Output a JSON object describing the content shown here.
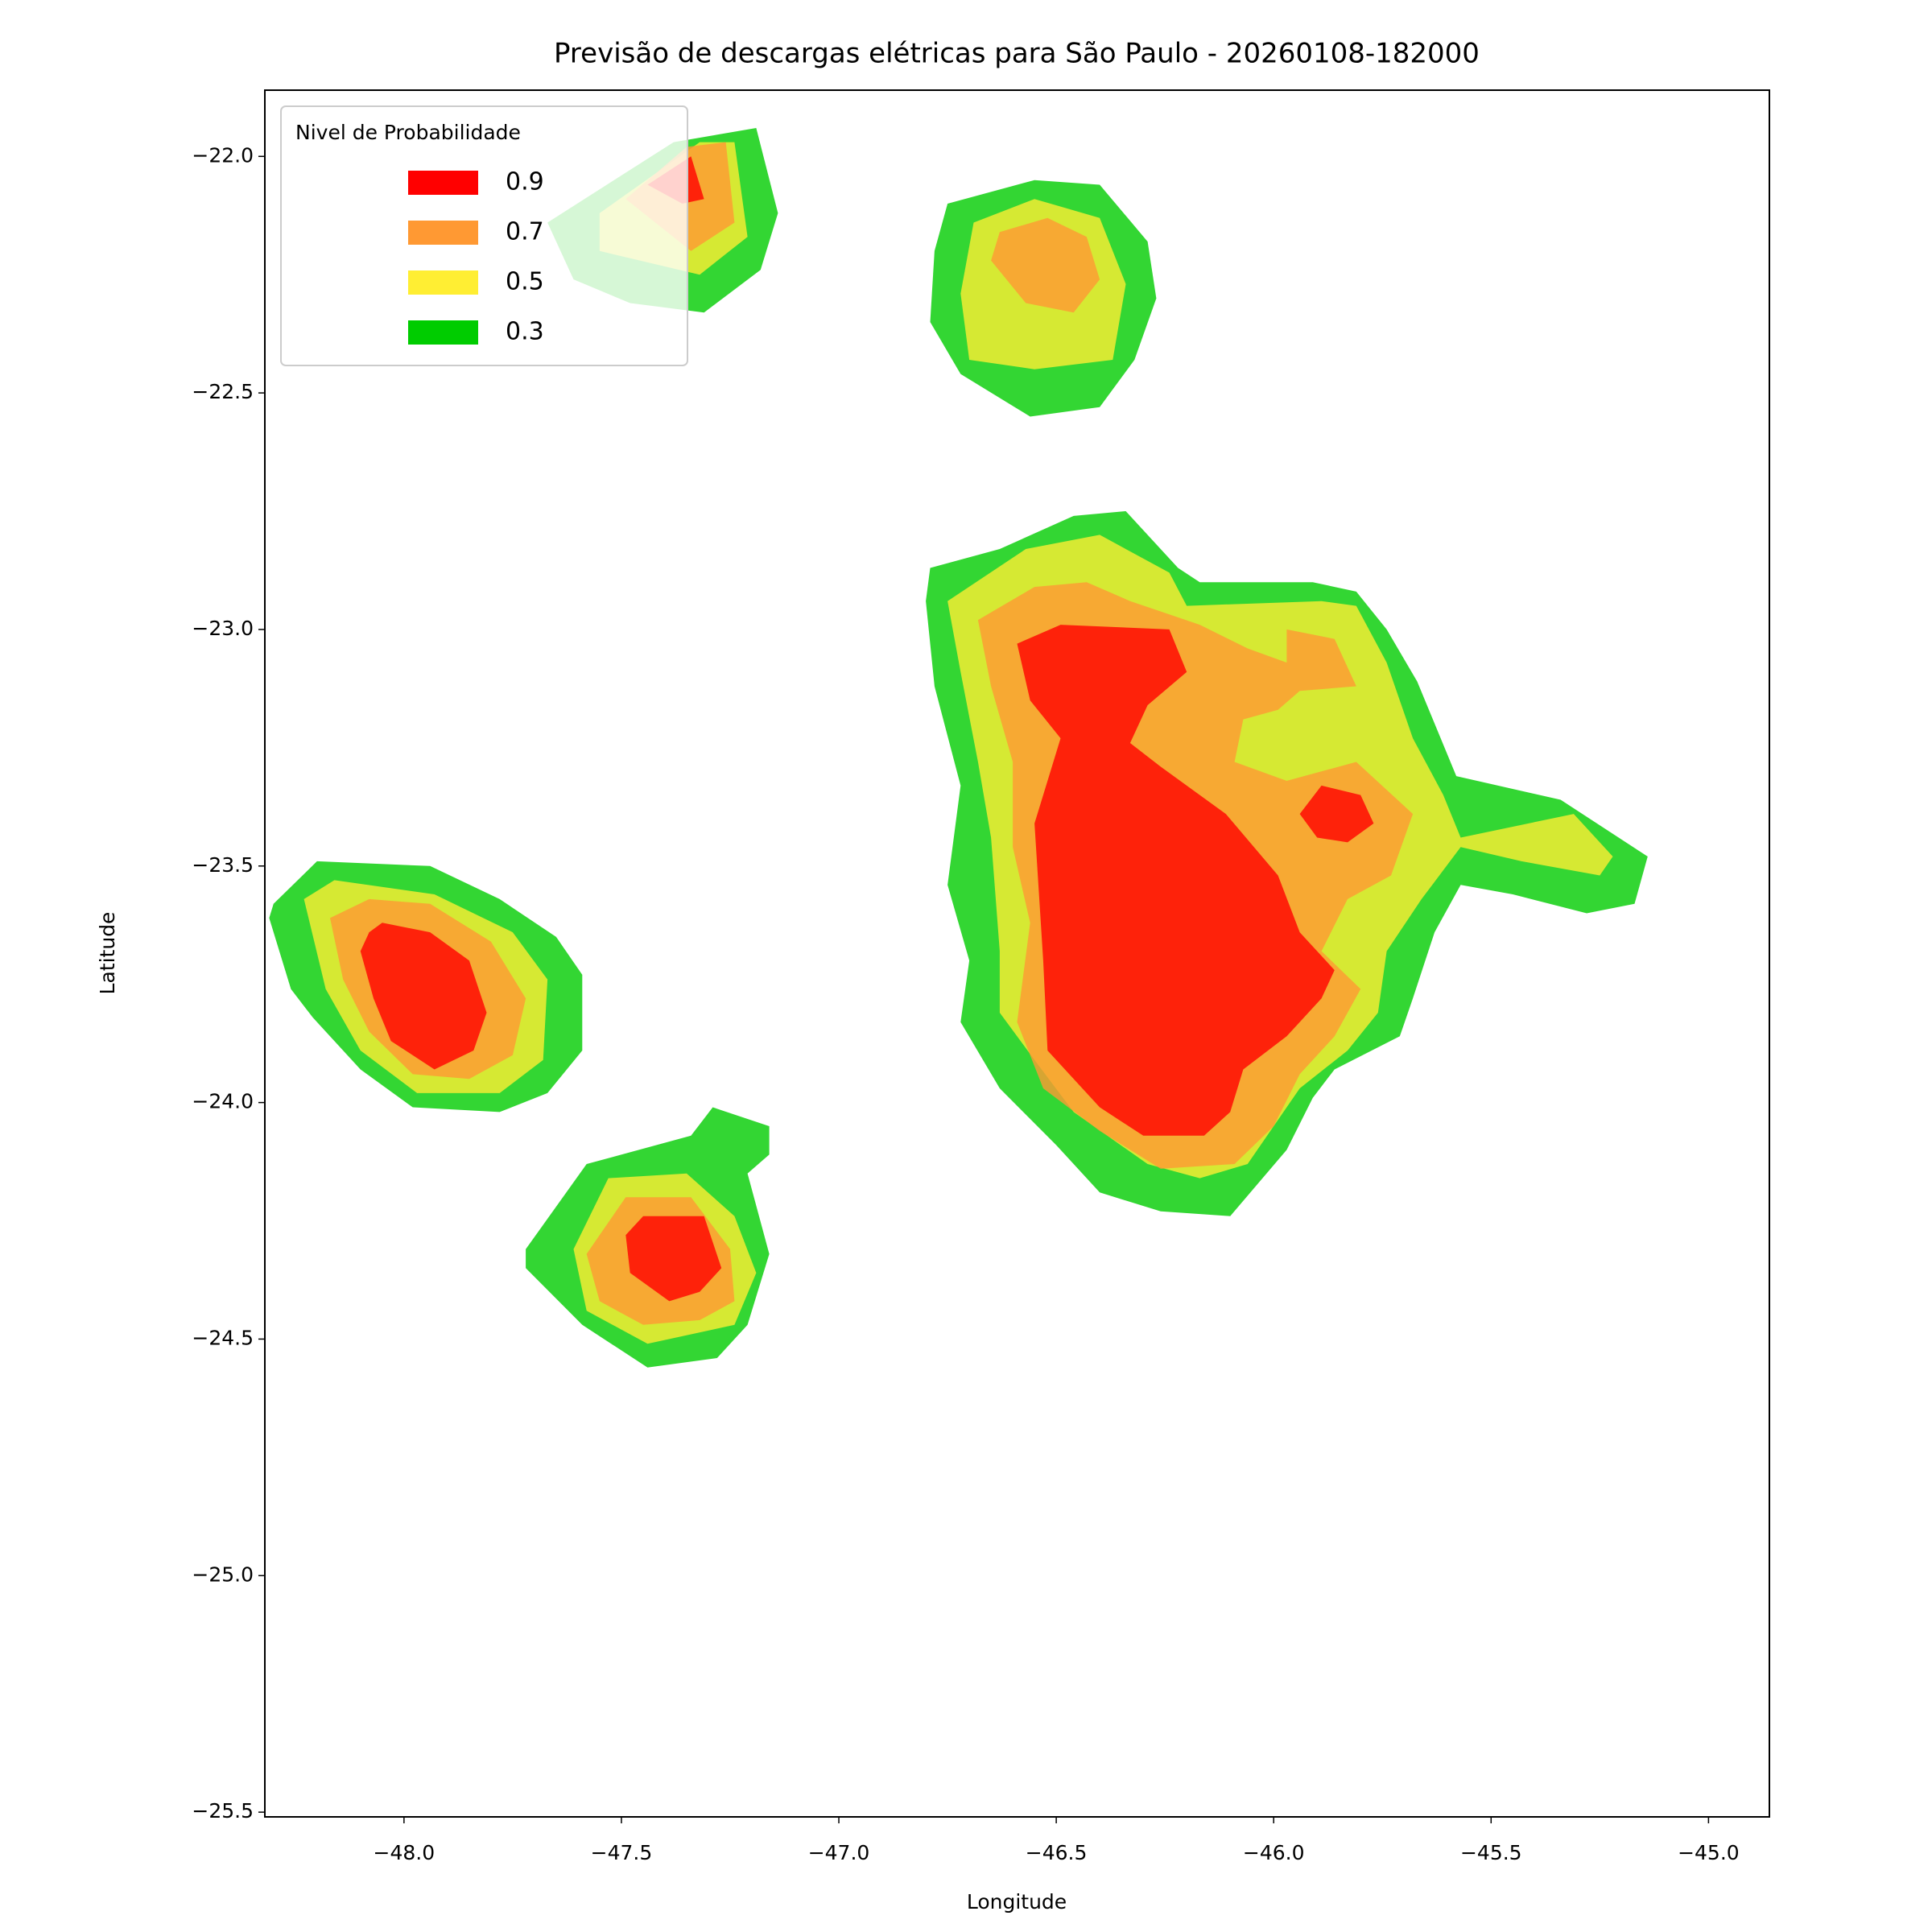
{
  "chart_data": {
    "type": "contourf",
    "title": "Previsão de descargas elétricas para São Paulo - 20260108-182000",
    "x_label": "Longitude",
    "y_label": "Latitude",
    "xlim": [
      -48.32,
      -44.86
    ],
    "ylim": [
      -25.51,
      -21.86
    ],
    "xticks": [
      {
        "value": -48.0,
        "label": "−48.0"
      },
      {
        "value": -47.5,
        "label": "−47.5"
      },
      {
        "value": -47.0,
        "label": "−47.0"
      },
      {
        "value": -46.5,
        "label": "−46.5"
      },
      {
        "value": -46.0,
        "label": "−46.0"
      },
      {
        "value": -45.5,
        "label": "−45.5"
      },
      {
        "value": -45.0,
        "label": "−45.0"
      }
    ],
    "yticks": [
      {
        "value": -22.0,
        "label": "−22.0"
      },
      {
        "value": -22.5,
        "label": "−22.5"
      },
      {
        "value": -23.0,
        "label": "−23.0"
      },
      {
        "value": -23.5,
        "label": "−23.5"
      },
      {
        "value": -24.0,
        "label": "−24.0"
      },
      {
        "value": -24.5,
        "label": "−24.5"
      },
      {
        "value": -25.0,
        "label": "−25.0"
      },
      {
        "value": -25.5,
        "label": "−25.5"
      }
    ],
    "alpha": 0.8,
    "legend": {
      "title": "Nivel de Probabilidade",
      "loc": "upper left"
    },
    "series": [
      {
        "name": "0.9",
        "color": "#ff0000",
        "regions": [
          {
            "lon": [
              -47.44,
              -47.34,
              -47.31,
              -47.36
            ],
            "lat": [
              -22.06,
              -22.0,
              -22.09,
              -22.1
            ]
          },
          {
            "lon": [
              -46.59,
              -46.49,
              -46.24,
              -46.2,
              -46.29,
              -46.33,
              -46.26,
              -46.11,
              -45.99,
              -45.94,
              -45.86,
              -45.89,
              -45.97,
              -46.07,
              -46.1,
              -46.16,
              -46.3,
              -46.4,
              -46.52,
              -46.53,
              -46.55,
              -46.49,
              -46.56
            ],
            "lat": [
              -23.03,
              -22.99,
              -23.0,
              -23.09,
              -23.16,
              -23.24,
              -23.29,
              -23.39,
              -23.52,
              -23.64,
              -23.72,
              -23.78,
              -23.86,
              -23.93,
              -24.02,
              -24.07,
              -24.07,
              -24.01,
              -23.89,
              -23.7,
              -23.41,
              -23.23,
              -23.15
            ]
          },
          {
            "lon": [
              -45.94,
              -45.89,
              -45.8,
              -45.77,
              -45.83,
              -45.9
            ],
            "lat": [
              -23.39,
              -23.33,
              -23.35,
              -23.41,
              -23.45,
              -23.44
            ]
          },
          {
            "lon": [
              -48.08,
              -48.05,
              -47.94,
              -47.85,
              -47.81,
              -47.84,
              -47.93,
              -48.03,
              -48.07,
              -48.1
            ],
            "lat": [
              -23.64,
              -23.62,
              -23.64,
              -23.7,
              -23.81,
              -23.89,
              -23.93,
              -23.87,
              -23.78,
              -23.68
            ]
          },
          {
            "lon": [
              -47.49,
              -47.45,
              -47.31,
              -47.27,
              -47.32,
              -47.39,
              -47.48
            ],
            "lat": [
              -24.28,
              -24.24,
              -24.24,
              -24.35,
              -24.4,
              -24.42,
              -24.36
            ]
          }
        ]
      },
      {
        "name": "0.7",
        "color": "#ff9933",
        "regions": [
          {
            "lon": [
              -47.49,
              -47.35,
              -47.26,
              -47.24,
              -47.34
            ],
            "lat": [
              -22.09,
              -21.98,
              -21.97,
              -22.14,
              -22.2
            ]
          },
          {
            "lon": [
              -46.63,
              -46.52,
              -46.43,
              -46.4,
              -46.46,
              -46.57,
              -46.65
            ],
            "lat": [
              -22.16,
              -22.13,
              -22.17,
              -22.26,
              -22.33,
              -22.31,
              -22.22
            ]
          },
          {
            "lon": [
              -46.68,
              -46.55,
              -46.43,
              -46.33,
              -46.17,
              -46.06,
              -45.97,
              -45.97,
              -45.86,
              -45.81,
              -45.94,
              -45.99,
              -46.07,
              -46.09,
              -45.97,
              -45.81,
              -45.68,
              -45.73,
              -45.83,
              -45.89,
              -45.8,
              -45.86,
              -45.94,
              -46.0,
              -46.09,
              -46.26,
              -46.4,
              -46.53,
              -46.59,
              -46.56,
              -46.6,
              -46.6,
              -46.65
            ],
            "lat": [
              -22.98,
              -22.91,
              -22.9,
              -22.94,
              -22.99,
              -23.04,
              -23.07,
              -23.0,
              -23.02,
              -23.12,
              -23.13,
              -23.17,
              -23.19,
              -23.28,
              -23.32,
              -23.28,
              -23.39,
              -23.52,
              -23.57,
              -23.68,
              -23.76,
              -23.86,
              -23.94,
              -24.05,
              -24.13,
              -24.14,
              -24.06,
              -23.97,
              -23.83,
              -23.62,
              -23.46,
              -23.28,
              -23.12
            ]
          },
          {
            "lon": [
              -48.17,
              -48.08,
              -47.94,
              -47.8,
              -47.72,
              -47.75,
              -47.85,
              -47.98,
              -48.08,
              -48.14
            ],
            "lat": [
              -23.61,
              -23.57,
              -23.58,
              -23.66,
              -23.78,
              -23.9,
              -23.95,
              -23.94,
              -23.85,
              -23.74
            ]
          },
          {
            "lon": [
              -47.58,
              -47.49,
              -47.34,
              -47.25,
              -47.24,
              -47.32,
              -47.45,
              -47.55
            ],
            "lat": [
              -24.32,
              -24.2,
              -24.2,
              -24.31,
              -24.42,
              -24.46,
              -24.47,
              -24.42
            ]
          }
        ]
      },
      {
        "name": "0.5",
        "color": "#ffee33",
        "regions": [
          {
            "lon": [
              -47.55,
              -47.32,
              -47.24,
              -47.21,
              -47.32,
              -47.55
            ],
            "lat": [
              -22.12,
              -21.97,
              -21.97,
              -22.17,
              -22.25,
              -22.2
            ]
          },
          {
            "lon": [
              -46.69,
              -46.55,
              -46.4,
              -46.34,
              -46.37,
              -46.55,
              -46.7,
              -46.72
            ],
            "lat": [
              -22.14,
              -22.09,
              -22.13,
              -22.27,
              -22.43,
              -22.45,
              -22.43,
              -22.29
            ]
          },
          {
            "lon": [
              -46.75,
              -46.57,
              -46.4,
              -46.24,
              -46.2,
              -45.89,
              -45.81,
              -45.74,
              -45.68,
              -45.61,
              -45.57,
              -45.31,
              -45.22,
              -45.25,
              -45.43,
              -45.57,
              -45.66,
              -45.74,
              -45.76,
              -45.83,
              -45.94,
              -46.06,
              -46.17,
              -46.29,
              -46.46,
              -46.55,
              -46.63,
              -46.63,
              -46.65,
              -46.68,
              -46.72
            ],
            "lat": [
              -22.94,
              -22.83,
              -22.8,
              -22.88,
              -22.95,
              -22.94,
              -22.95,
              -23.07,
              -23.23,
              -23.35,
              -23.44,
              -23.39,
              -23.48,
              -23.52,
              -23.49,
              -23.46,
              -23.57,
              -23.68,
              -23.81,
              -23.89,
              -23.97,
              -24.13,
              -24.16,
              -24.13,
              -24.02,
              -23.91,
              -23.81,
              -23.68,
              -23.44,
              -23.28,
              -23.09
            ]
          },
          {
            "lon": [
              -48.23,
              -48.16,
              -47.93,
              -47.75,
              -47.67,
              -47.68,
              -47.78,
              -47.97,
              -48.1,
              -48.18
            ],
            "lat": [
              -23.57,
              -23.53,
              -23.56,
              -23.64,
              -23.74,
              -23.91,
              -23.98,
              -23.98,
              -23.89,
              -23.76
            ]
          },
          {
            "lon": [
              -47.61,
              -47.53,
              -47.35,
              -47.24,
              -47.19,
              -47.24,
              -47.44,
              -47.58
            ],
            "lat": [
              -24.31,
              -24.16,
              -24.15,
              -24.24,
              -24.36,
              -24.47,
              -24.51,
              -24.44
            ]
          }
        ]
      },
      {
        "name": "0.3",
        "color": "#00cc00",
        "regions": [
          {
            "lon": [
              -47.67,
              -47.38,
              -47.19,
              -47.14,
              -47.18,
              -47.31,
              -47.48,
              -47.61
            ],
            "lat": [
              -22.14,
              -21.97,
              -21.94,
              -22.12,
              -22.24,
              -22.33,
              -22.31,
              -22.26
            ]
          },
          {
            "lon": [
              -46.75,
              -46.55,
              -46.4,
              -46.29,
              -46.27,
              -46.32,
              -46.4,
              -46.56,
              -46.72,
              -46.79,
              -46.78
            ],
            "lat": [
              -22.1,
              -22.05,
              -22.06,
              -22.18,
              -22.3,
              -22.43,
              -22.53,
              -22.55,
              -22.46,
              -22.35,
              -22.2
            ]
          },
          {
            "lon": [
              -46.79,
              -46.63,
              -46.46,
              -46.34,
              -46.22,
              -46.17,
              -45.91,
              -45.81,
              -45.74,
              -45.67,
              -45.58,
              -45.34,
              -45.14,
              -45.17,
              -45.28,
              -45.45,
              -45.57,
              -45.63,
              -45.68,
              -45.71,
              -45.86,
              -45.91,
              -45.97,
              -46.1,
              -46.26,
              -46.4,
              -46.5,
              -46.63,
              -46.72,
              -46.7,
              -46.75,
              -46.72,
              -46.78,
              -46.8
            ],
            "lat": [
              -22.87,
              -22.83,
              -22.76,
              -22.75,
              -22.87,
              -22.9,
              -22.9,
              -22.92,
              -23.0,
              -23.11,
              -23.31,
              -23.36,
              -23.48,
              -23.58,
              -23.6,
              -23.56,
              -23.54,
              -23.64,
              -23.78,
              -23.86,
              -23.93,
              -23.99,
              -24.1,
              -24.24,
              -24.23,
              -24.19,
              -24.09,
              -23.97,
              -23.83,
              -23.7,
              -23.54,
              -23.33,
              -23.12,
              -22.94
            ]
          },
          {
            "lon": [
              -48.3,
              -48.2,
              -47.94,
              -47.78,
              -47.65,
              -47.59,
              -47.59,
              -47.67,
              -47.78,
              -47.98,
              -48.1,
              -48.21,
              -48.26,
              -48.31
            ],
            "lat": [
              -23.58,
              -23.49,
              -23.5,
              -23.57,
              -23.65,
              -23.73,
              -23.89,
              -23.98,
              -24.02,
              -24.01,
              -23.93,
              -23.82,
              -23.76,
              -23.61
            ]
          },
          {
            "lon": [
              -47.72,
              -47.58,
              -47.34,
              -47.29,
              -47.16,
              -47.16,
              -47.21,
              -47.16,
              -47.21,
              -47.28,
              -47.44,
              -47.59,
              -47.72
            ],
            "lat": [
              -24.31,
              -24.13,
              -24.07,
              -24.01,
              -24.05,
              -24.11,
              -24.15,
              -24.32,
              -24.47,
              -24.54,
              -24.56,
              -24.47,
              -24.35
            ]
          }
        ]
      }
    ]
  }
}
